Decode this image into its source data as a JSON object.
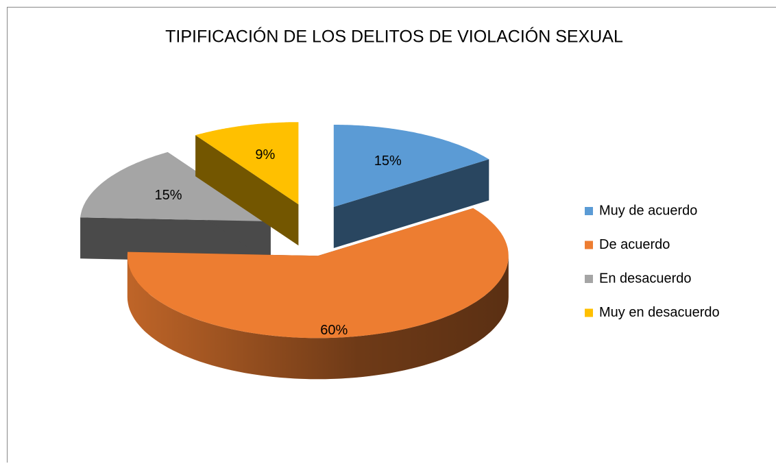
{
  "chart_data": {
    "type": "pie",
    "title": "TIPIFICACIÓN DE LOS DELITOS DE VIOLACIÓN SEXUAL",
    "categories": [
      "Muy de acuerdo",
      "De acuerdo",
      "En desacuerdo",
      "Muy en desacuerdo"
    ],
    "values": [
      15,
      60,
      15,
      9
    ],
    "value_labels": [
      "15%",
      "60%",
      "15%",
      "9%"
    ],
    "colors": [
      "#5b9bd5",
      "#ed7d31",
      "#a5a5a5",
      "#ffc000"
    ],
    "legend": "right"
  }
}
